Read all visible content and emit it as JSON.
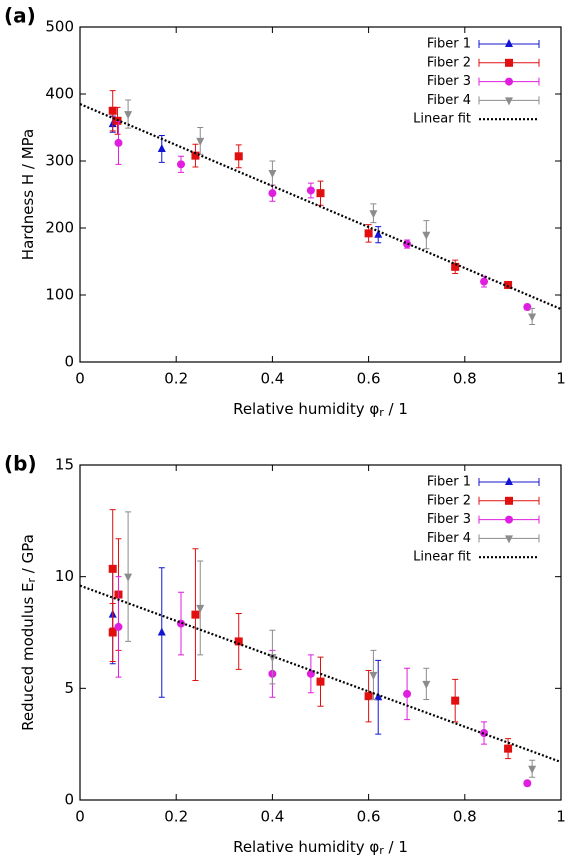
{
  "chart_data": [
    {
      "type": "scatter",
      "label": "(a)",
      "xlabel": [
        "Relative humidity φ",
        "r",
        " / 1"
      ],
      "ylabel": [
        "Hardness H / MPa"
      ],
      "xlim": [
        0,
        1
      ],
      "xticks": [
        0,
        0.2,
        0.4,
        0.6,
        0.8,
        1
      ],
      "ylim": [
        0,
        500
      ],
      "yticks": [
        0,
        100,
        200,
        300,
        400,
        500
      ],
      "legend": "upper right",
      "series": [
        {
          "name": "Fiber 1",
          "color": "#1414d2",
          "marker": "triangle-up",
          "x": [
            0.068,
            0.17,
            0.62
          ],
          "values": [
            355,
            318,
            190
          ],
          "error": [
            12,
            20,
            12
          ]
        },
        {
          "name": "Fiber 2",
          "color": "#e01010",
          "marker": "square",
          "x": [
            0.068,
            0.078,
            0.24,
            0.33,
            0.5,
            0.6,
            0.78,
            0.89
          ],
          "values": [
            375,
            360,
            308,
            307,
            252,
            192,
            142,
            115
          ],
          "error": [
            30,
            20,
            17,
            17,
            18,
            13,
            10,
            5
          ]
        },
        {
          "name": "Fiber 3",
          "color": "#e01ee0",
          "marker": "circle",
          "x": [
            0.08,
            0.21,
            0.4,
            0.48,
            0.68,
            0.84,
            0.93
          ],
          "values": [
            327,
            295,
            252,
            256,
            176,
            120,
            82
          ],
          "error": [
            32,
            12,
            12,
            11,
            6,
            8,
            4
          ]
        },
        {
          "name": "Fiber 4",
          "color": "#8c8c8c",
          "marker": "triangle-down",
          "x": [
            0.1,
            0.25,
            0.4,
            0.61,
            0.72,
            0.94
          ],
          "values": [
            370,
            330,
            282,
            222,
            190,
            68
          ],
          "error": [
            21,
            20,
            18,
            14,
            21,
            12
          ]
        },
        {
          "name": "Linear fit",
          "color": "#000000",
          "linestyle": "dotted",
          "x": [
            0,
            1
          ],
          "values": [
            385,
            79
          ]
        }
      ]
    },
    {
      "type": "scatter",
      "label": "(b)",
      "xlabel": [
        "Relative humidity φ",
        "r",
        " / 1"
      ],
      "ylabel": [
        "Reduced modulus E",
        "r",
        " / GPa"
      ],
      "xlim": [
        0,
        1
      ],
      "xticks": [
        0,
        0.2,
        0.4,
        0.6,
        0.8,
        1
      ],
      "ylim": [
        0,
        15
      ],
      "yticks": [
        0,
        5,
        10,
        15
      ],
      "legend": "upper right",
      "series": [
        {
          "name": "Fiber 1",
          "color": "#1414d2",
          "marker": "triangle-up",
          "x": [
            0.068,
            0.17,
            0.62
          ],
          "values": [
            8.3,
            7.5,
            4.6
          ],
          "error": [
            2.2,
            2.9,
            1.65
          ]
        },
        {
          "name": "Fiber 2",
          "color": "#e01010",
          "marker": "square",
          "x": [
            0.068,
            0.068,
            0.08,
            0.24,
            0.33,
            0.5,
            0.6,
            0.78,
            0.89
          ],
          "values": [
            10.35,
            7.5,
            9.2,
            8.3,
            7.1,
            5.3,
            4.65,
            4.45,
            2.3
          ],
          "error": [
            2.65,
            1.3,
            2.5,
            2.95,
            1.25,
            1.1,
            1.15,
            0.95,
            0.45
          ]
        },
        {
          "name": "Fiber 3",
          "color": "#e01ee0",
          "marker": "circle",
          "x": [
            0.08,
            0.21,
            0.4,
            0.48,
            0.68,
            0.84,
            0.93
          ],
          "values": [
            7.75,
            7.9,
            5.65,
            5.65,
            4.75,
            3.0,
            0.75
          ],
          "error": [
            2.25,
            1.4,
            1.05,
            0.85,
            1.15,
            0.5,
            0.1
          ]
        },
        {
          "name": "Fiber 4",
          "color": "#8c8c8c",
          "marker": "triangle-down",
          "x": [
            0.1,
            0.25,
            0.4,
            0.61,
            0.72,
            0.94
          ],
          "values": [
            10.0,
            8.6,
            6.4,
            5.6,
            5.2,
            1.4
          ],
          "error": [
            2.9,
            2.1,
            1.2,
            1.1,
            0.7,
            0.38
          ]
        },
        {
          "name": "Linear fit",
          "color": "#000000",
          "linestyle": "dotted",
          "x": [
            0,
            1
          ],
          "values": [
            9.6,
            1.7
          ]
        }
      ]
    }
  ]
}
